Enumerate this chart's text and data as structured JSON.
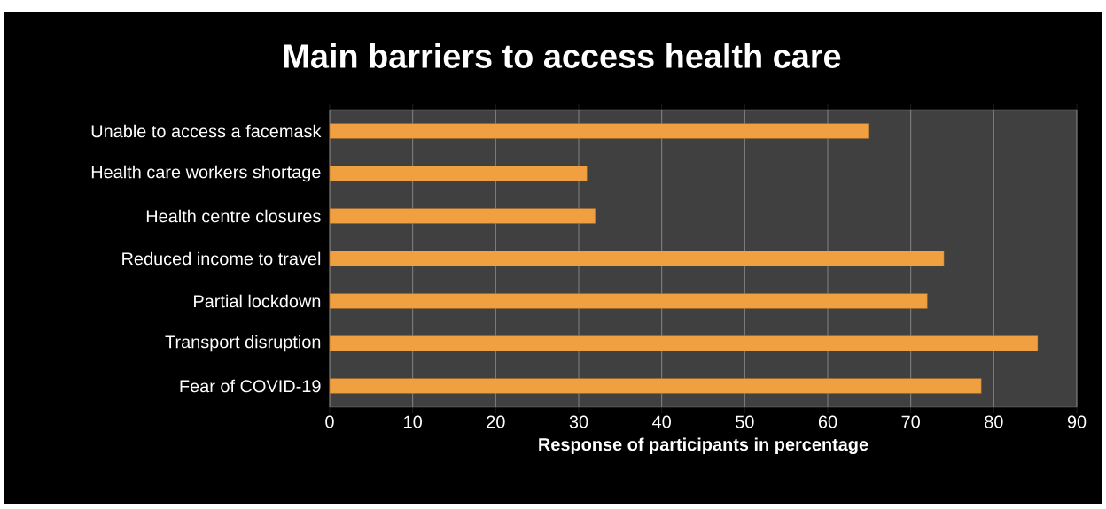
{
  "chart_data": {
    "type": "bar",
    "orientation": "horizontal",
    "title": "Main barriers to access health care",
    "xlabel": "Response of participants  in percentage",
    "categories": [
      "Unable to access a facemask",
      "Health care workers shortage",
      "Health centre closures",
      "Reduced income to travel",
      "Partial lockdown",
      "Transport disruption",
      "Fear of COVID-19"
    ],
    "values": [
      65,
      31,
      32,
      74,
      72,
      85.3,
      78.5
    ],
    "color": "#f0a040",
    "xlim": [
      0,
      90
    ],
    "xticks": [
      0,
      10,
      20,
      30,
      40,
      50,
      60,
      70,
      80,
      90
    ],
    "grid": "x"
  }
}
